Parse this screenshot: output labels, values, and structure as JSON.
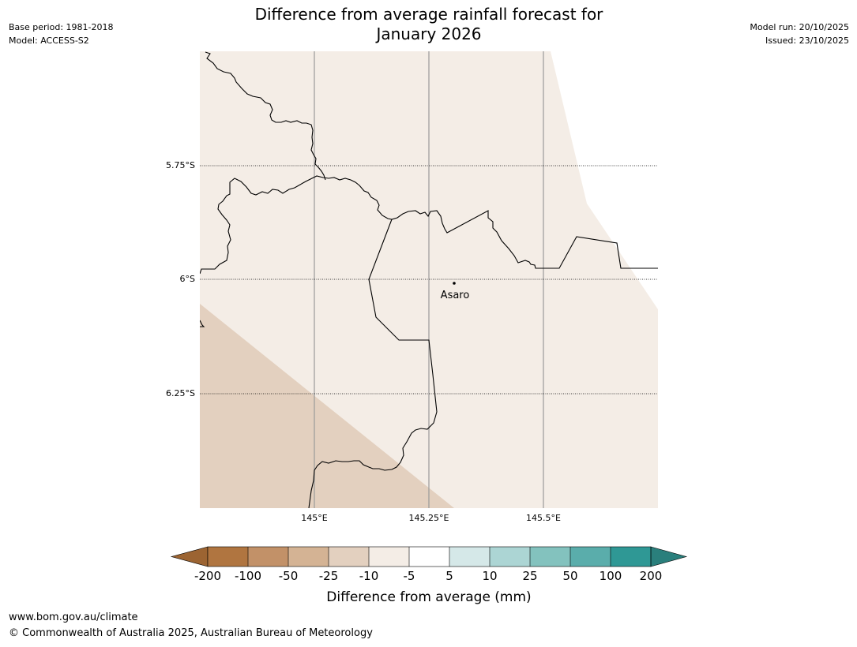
{
  "header": {
    "title_line1": "Difference from average rainfall forecast for",
    "title_line2": "January 2026",
    "base_period": "Base period: 1981-2018",
    "model": "Model: ACCESS-S2",
    "model_run": "Model run: 20/10/2025",
    "issued": "Issued: 23/10/2025"
  },
  "map": {
    "lat_labels": [
      "5.75°S",
      "6°S",
      "6.25°S"
    ],
    "lon_labels": [
      "145°E",
      "145.25°E",
      "145.5°E"
    ],
    "place": {
      "name": "Asaro",
      "lon": 145.3,
      "lat": -6.01
    },
    "colors": {
      "near_average": "#f4ede6",
      "minus_25_to_minus_10": "#e3d0bf",
      "border": "#000000",
      "meridian": "#9a9a9a"
    },
    "extent": {
      "lon_min": 144.75,
      "lon_max": 145.75,
      "lat_min": -6.5,
      "lat_max": -5.5
    }
  },
  "legend": {
    "title": "Difference from average (mm)",
    "ticks": [
      "-200",
      "-100",
      "-50",
      "-25",
      "-10",
      "-5",
      "5",
      "10",
      "25",
      "50",
      "100",
      "200"
    ],
    "colors": {
      "below_min": "#9c6432",
      "bins": [
        "#b07540",
        "#c29168",
        "#d4b394",
        "#e3d0bf",
        "#f4ede6",
        "#ffffff",
        "#d5e8e8",
        "#acd5d4",
        "#83c2be",
        "#5aadab",
        "#2f9895"
      ],
      "above_max": "#2a7f7c"
    }
  },
  "footer": {
    "url": "www.bom.gov.au/climate",
    "copyright": "© Commonwealth of Australia 2025, Australian Bureau of Meteorology"
  }
}
